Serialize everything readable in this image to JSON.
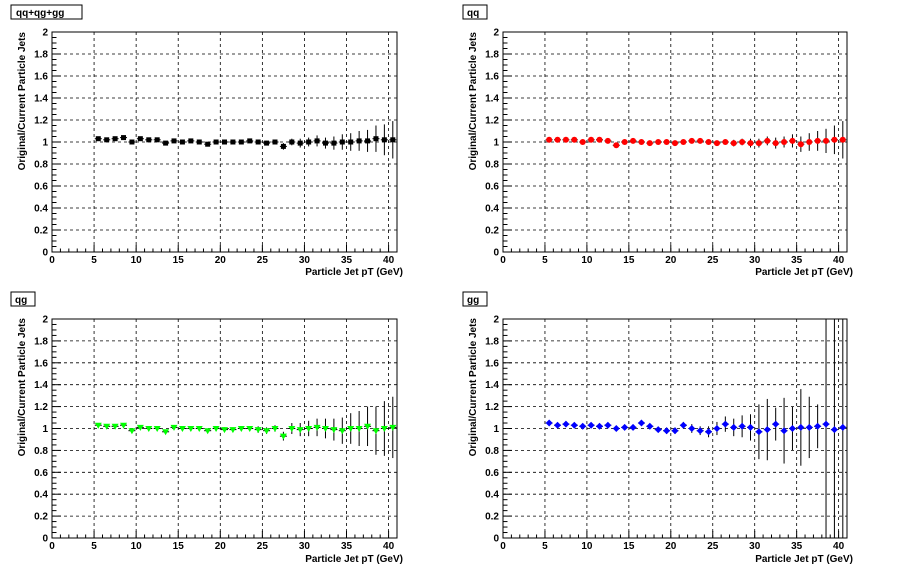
{
  "chart_data": [
    {
      "type": "scatter",
      "title": "qq+qg+gg",
      "xlabel": "Particle Jet pT (GeV)",
      "ylabel": "Original/Current Particle Jets",
      "xlim": [
        0,
        41
      ],
      "ylim": [
        0,
        2
      ],
      "grid": true,
      "marker": "square",
      "color": "#000000",
      "x_ticks": [
        "0",
        "5",
        "10",
        "15",
        "20",
        "25",
        "30",
        "35",
        "40"
      ],
      "y_ticks": [
        "0",
        "0.2",
        "0.4",
        "0.6",
        "0.8",
        "1",
        "1.2",
        "1.4",
        "1.6",
        "1.8",
        "2"
      ],
      "x": [
        5.5,
        6.5,
        7.5,
        8.5,
        9.5,
        10.5,
        11.5,
        12.5,
        13.5,
        14.5,
        15.5,
        16.5,
        17.5,
        18.5,
        19.5,
        20.5,
        21.5,
        22.5,
        23.5,
        24.5,
        25.5,
        26.5,
        27.5,
        28.5,
        29.5,
        30.5,
        31.5,
        32.5,
        33.5,
        34.5,
        35.5,
        36.5,
        37.5,
        38.5,
        39.5,
        40.5
      ],
      "y": [
        1.03,
        1.02,
        1.03,
        1.04,
        1.0,
        1.03,
        1.02,
        1.02,
        0.99,
        1.01,
        1.0,
        1.01,
        1.0,
        0.98,
        1.0,
        1.0,
        1.0,
        1.0,
        1.01,
        1.0,
        0.99,
        1.0,
        0.96,
        1.0,
        0.99,
        1.0,
        1.01,
        0.99,
        0.99,
        1.0,
        1.0,
        1.01,
        1.01,
        1.03,
        1.02,
        1.02
      ],
      "yerr": [
        0.01,
        0.01,
        0.01,
        0.01,
        0.01,
        0.01,
        0.01,
        0.01,
        0.01,
        0.01,
        0.01,
        0.01,
        0.01,
        0.01,
        0.01,
        0.01,
        0.01,
        0.01,
        0.01,
        0.02,
        0.02,
        0.02,
        0.03,
        0.03,
        0.04,
        0.04,
        0.05,
        0.05,
        0.06,
        0.07,
        0.08,
        0.09,
        0.1,
        0.12,
        0.14,
        0.17
      ]
    },
    {
      "type": "scatter",
      "title": "qq",
      "xlabel": "Particle Jet pT (GeV)",
      "ylabel": "Original/Current Particle Jets",
      "xlim": [
        0,
        41
      ],
      "ylim": [
        0,
        2
      ],
      "grid": true,
      "marker": "circle",
      "color": "#ff0000",
      "x_ticks": [
        "0",
        "5",
        "10",
        "15",
        "20",
        "25",
        "30",
        "35",
        "40"
      ],
      "y_ticks": [
        "0",
        "0.2",
        "0.4",
        "0.6",
        "0.8",
        "1",
        "1.2",
        "1.4",
        "1.6",
        "1.8",
        "2"
      ],
      "x": [
        5.5,
        6.5,
        7.5,
        8.5,
        9.5,
        10.5,
        11.5,
        12.5,
        13.5,
        14.5,
        15.5,
        16.5,
        17.5,
        18.5,
        19.5,
        20.5,
        21.5,
        22.5,
        23.5,
        24.5,
        25.5,
        26.5,
        27.5,
        28.5,
        29.5,
        30.5,
        31.5,
        32.5,
        33.5,
        34.5,
        35.5,
        36.5,
        37.5,
        38.5,
        39.5,
        40.5
      ],
      "y": [
        1.02,
        1.02,
        1.02,
        1.02,
        1.0,
        1.02,
        1.02,
        1.01,
        0.97,
        1.0,
        1.01,
        1.0,
        0.99,
        1.0,
        1.0,
        0.99,
        1.0,
        1.01,
        1.01,
        1.0,
        0.99,
        1.0,
        0.99,
        1.0,
        0.99,
        0.99,
        1.01,
        0.99,
        1.0,
        1.01,
        0.98,
        1.0,
        1.01,
        1.01,
        1.02,
        1.02
      ],
      "yerr": [
        0.01,
        0.01,
        0.01,
        0.01,
        0.01,
        0.01,
        0.01,
        0.01,
        0.01,
        0.01,
        0.01,
        0.01,
        0.01,
        0.01,
        0.01,
        0.01,
        0.01,
        0.01,
        0.01,
        0.02,
        0.02,
        0.02,
        0.03,
        0.03,
        0.04,
        0.04,
        0.04,
        0.05,
        0.05,
        0.06,
        0.07,
        0.08,
        0.09,
        0.11,
        0.13,
        0.17
      ]
    },
    {
      "type": "scatter",
      "title": "qg",
      "xlabel": "Particle Jet pT (GeV)",
      "ylabel": "Original/Current Particle Jets",
      "xlim": [
        0,
        41
      ],
      "ylim": [
        0,
        2
      ],
      "grid": true,
      "marker": "triangle",
      "color": "#00ff00",
      "x_ticks": [
        "0",
        "5",
        "10",
        "15",
        "20",
        "25",
        "30",
        "35",
        "40"
      ],
      "y_ticks": [
        "0",
        "0.2",
        "0.4",
        "0.6",
        "0.8",
        "1",
        "1.2",
        "1.4",
        "1.6",
        "1.8",
        "2"
      ],
      "x": [
        5.5,
        6.5,
        7.5,
        8.5,
        9.5,
        10.5,
        11.5,
        12.5,
        13.5,
        14.5,
        15.5,
        16.5,
        17.5,
        18.5,
        19.5,
        20.5,
        21.5,
        22.5,
        23.5,
        24.5,
        25.5,
        26.5,
        27.5,
        28.5,
        29.5,
        30.5,
        31.5,
        32.5,
        33.5,
        34.5,
        35.5,
        36.5,
        37.5,
        38.5,
        39.5,
        40.5
      ],
      "y": [
        1.03,
        1.02,
        1.02,
        1.03,
        0.98,
        1.01,
        1.0,
        1.0,
        0.97,
        1.01,
        1.0,
        1.0,
        1.0,
        0.98,
        1.0,
        0.99,
        0.99,
        1.0,
        1.0,
        0.99,
        0.98,
        1.0,
        0.93,
        1.0,
        0.99,
        1.0,
        1.01,
        1.0,
        0.99,
        0.98,
        1.0,
        1.0,
        1.02,
        0.98,
        1.0,
        1.01
      ],
      "yerr": [
        0.01,
        0.01,
        0.01,
        0.01,
        0.01,
        0.01,
        0.01,
        0.01,
        0.01,
        0.01,
        0.01,
        0.01,
        0.01,
        0.01,
        0.02,
        0.02,
        0.02,
        0.02,
        0.02,
        0.03,
        0.03,
        0.03,
        0.04,
        0.05,
        0.06,
        0.07,
        0.08,
        0.09,
        0.1,
        0.12,
        0.14,
        0.16,
        0.18,
        0.22,
        0.25,
        0.28
      ]
    },
    {
      "type": "scatter",
      "title": "gg",
      "xlabel": "Particle Jet pT (GeV)",
      "ylabel": "Original/Current Particle Jets",
      "xlim": [
        0,
        41
      ],
      "ylim": [
        0,
        2
      ],
      "grid": true,
      "marker": "star",
      "color": "#0000ff",
      "x_ticks": [
        "0",
        "5",
        "10",
        "15",
        "20",
        "25",
        "30",
        "35",
        "40"
      ],
      "y_ticks": [
        "0",
        "0.2",
        "0.4",
        "0.6",
        "0.8",
        "1",
        "1.2",
        "1.4",
        "1.6",
        "1.8",
        "2"
      ],
      "x": [
        5.5,
        6.5,
        7.5,
        8.5,
        9.5,
        10.5,
        11.5,
        12.5,
        13.5,
        14.5,
        15.5,
        16.5,
        17.5,
        18.5,
        19.5,
        20.5,
        21.5,
        22.5,
        23.5,
        24.5,
        25.5,
        26.5,
        27.5,
        28.5,
        29.5,
        30.5,
        31.5,
        32.5,
        33.5,
        34.5,
        35.5,
        36.5,
        37.5,
        38.5,
        39.5,
        40.5
      ],
      "y": [
        1.05,
        1.03,
        1.04,
        1.03,
        1.02,
        1.03,
        1.02,
        1.03,
        1.0,
        1.01,
        1.01,
        1.05,
        1.02,
        0.99,
        0.98,
        0.98,
        1.03,
        1.0,
        0.98,
        0.97,
        1.0,
        1.04,
        1.01,
        1.02,
        1.01,
        0.97,
        0.99,
        1.04,
        0.98,
        1.0,
        1.01,
        1.01,
        1.02,
        1.04,
        0.99,
        1.01
      ],
      "yerr": [
        0.01,
        0.01,
        0.01,
        0.01,
        0.01,
        0.01,
        0.01,
        0.01,
        0.01,
        0.02,
        0.02,
        0.02,
        0.02,
        0.02,
        0.03,
        0.03,
        0.03,
        0.04,
        0.04,
        0.05,
        0.06,
        0.07,
        0.08,
        0.1,
        0.12,
        0.25,
        0.28,
        0.15,
        0.3,
        0.2,
        0.35,
        0.28,
        0.2,
        1.1,
        1.2,
        1.4
      ]
    }
  ]
}
